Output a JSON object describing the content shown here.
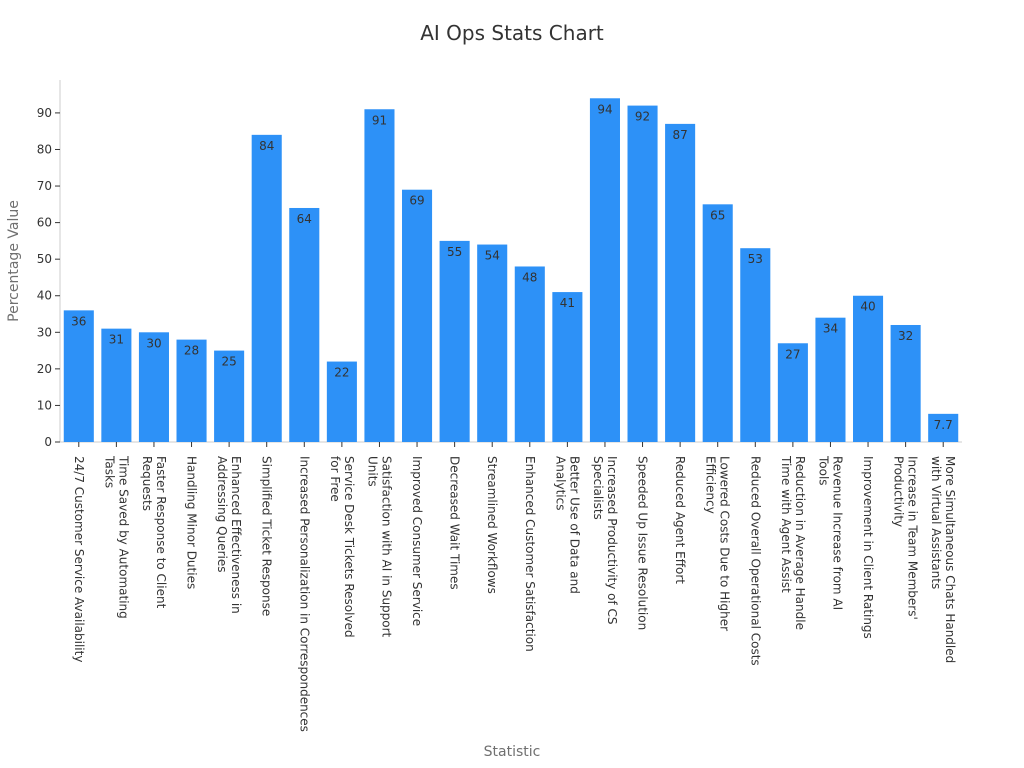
{
  "chart_data": {
    "type": "bar",
    "title": "AI Ops Stats Chart",
    "xlabel": "Statistic",
    "ylabel": "Percentage Value",
    "ylim": [
      0,
      99
    ],
    "yticks": [
      0,
      10,
      20,
      30,
      40,
      50,
      60,
      70,
      80,
      90
    ],
    "grid": false,
    "bar_color": "#2d91f7",
    "categories": [
      [
        "24/7 Customer Service Availability"
      ],
      [
        "Time Saved by Automating",
        "Tasks"
      ],
      [
        "Faster Response to Client",
        "Requests"
      ],
      [
        "Handling Minor Duties"
      ],
      [
        "Enhanced Effectiveness in",
        "Addressing Queries"
      ],
      [
        "Simplified Ticket Response"
      ],
      [
        "Increased Personalization in Correspondences"
      ],
      [
        "Service Desk Tickets Resolved",
        "for Free"
      ],
      [
        "Satisfaction with AI in Support",
        "Units"
      ],
      [
        "Improved Consumer Service"
      ],
      [
        "Decreased Wait Times"
      ],
      [
        "Streamlined Workflows"
      ],
      [
        "Enhanced Customer Satisfaction"
      ],
      [
        "Better Use of Data and",
        "Analytics"
      ],
      [
        "Increased Productivity of CS",
        "Specialists"
      ],
      [
        "Speeded Up Issue Resolution"
      ],
      [
        "Reduced Agent Effort"
      ],
      [
        "Lowered Costs Due to Higher",
        "Efficiency"
      ],
      [
        "Reduced Overall Operational Costs"
      ],
      [
        "Reduction in Average Handle",
        "Time with Agent Assist"
      ],
      [
        "Revenue Increase from AI",
        "Tools"
      ],
      [
        "Improvement in Client Ratings"
      ],
      [
        "Increase in Team Members'",
        "Productivity"
      ],
      [
        "More Simultaneous Chats Handled",
        "with Virtual Assistants"
      ]
    ],
    "values": [
      36,
      31,
      30,
      28,
      25,
      84,
      64,
      22,
      91,
      69,
      55,
      54,
      48,
      41,
      94,
      92,
      87,
      65,
      53,
      27,
      34,
      40,
      32,
      7.7
    ],
    "value_labels": [
      "36",
      "31",
      "30",
      "28",
      "25",
      "84",
      "64",
      "22",
      "91",
      "69",
      "55",
      "54",
      "48",
      "41",
      "94",
      "92",
      "87",
      "65",
      "53",
      "27",
      "34",
      "40",
      "32",
      "7.7"
    ]
  }
}
